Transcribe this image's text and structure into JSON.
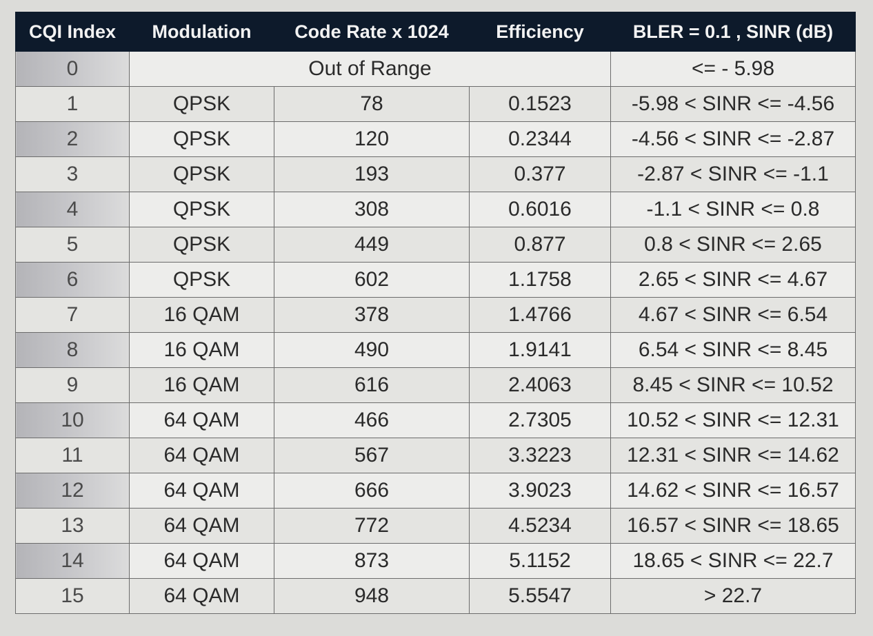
{
  "table": {
    "columns": [
      "CQI Index",
      "Modulation",
      "Code Rate x 1024",
      "Efficiency",
      "BLER = 0.1 , SINR (dB)"
    ],
    "out_of_range_row": {
      "cqi": "0",
      "label": "Out of Range",
      "sinr": "<= - 5.98"
    },
    "rows": [
      {
        "cqi": "1",
        "modulation": "QPSK",
        "code_rate": "78",
        "efficiency": "0.1523",
        "sinr": "-5.98 < SINR <= -4.56"
      },
      {
        "cqi": "2",
        "modulation": "QPSK",
        "code_rate": "120",
        "efficiency": "0.2344",
        "sinr": "-4.56 < SINR <= -2.87"
      },
      {
        "cqi": "3",
        "modulation": "QPSK",
        "code_rate": "193",
        "efficiency": "0.377",
        "sinr": "-2.87 < SINR <= -1.1"
      },
      {
        "cqi": "4",
        "modulation": "QPSK",
        "code_rate": "308",
        "efficiency": "0.6016",
        "sinr": "-1.1 < SINR <= 0.8"
      },
      {
        "cqi": "5",
        "modulation": "QPSK",
        "code_rate": "449",
        "efficiency": "0.877",
        "sinr": "0.8 < SINR <= 2.65"
      },
      {
        "cqi": "6",
        "modulation": "QPSK",
        "code_rate": "602",
        "efficiency": "1.1758",
        "sinr": "2.65 < SINR <= 4.67"
      },
      {
        "cqi": "7",
        "modulation": "16 QAM",
        "code_rate": "378",
        "efficiency": "1.4766",
        "sinr": "4.67 < SINR <= 6.54"
      },
      {
        "cqi": "8",
        "modulation": "16 QAM",
        "code_rate": "490",
        "efficiency": "1.9141",
        "sinr": "6.54 < SINR <= 8.45"
      },
      {
        "cqi": "9",
        "modulation": "16 QAM",
        "code_rate": "616",
        "efficiency": "2.4063",
        "sinr": "8.45 < SINR <= 10.52"
      },
      {
        "cqi": "10",
        "modulation": "64 QAM",
        "code_rate": "466",
        "efficiency": "2.7305",
        "sinr": "10.52 < SINR <= 12.31"
      },
      {
        "cqi": "11",
        "modulation": "64 QAM",
        "code_rate": "567",
        "efficiency": "3.3223",
        "sinr": "12.31 < SINR <= 14.62"
      },
      {
        "cqi": "12",
        "modulation": "64 QAM",
        "code_rate": "666",
        "efficiency": "3.9023",
        "sinr": "14.62 < SINR <= 16.57"
      },
      {
        "cqi": "13",
        "modulation": "64 QAM",
        "code_rate": "772",
        "efficiency": "4.5234",
        "sinr": "16.57 < SINR <= 18.65"
      },
      {
        "cqi": "14",
        "modulation": "64 QAM",
        "code_rate": "873",
        "efficiency": "5.1152",
        "sinr": "18.65 < SINR <= 22.7"
      },
      {
        "cqi": "15",
        "modulation": "64 QAM",
        "code_rate": "948",
        "efficiency": "5.5547",
        "sinr": "> 22.7"
      }
    ]
  },
  "chart_data": {
    "type": "table",
    "title": "",
    "columns": [
      "CQI Index",
      "Modulation",
      "Code Rate x 1024",
      "Efficiency",
      "BLER = 0.1 , SINR (dB)"
    ],
    "rows": [
      [
        "0",
        "Out of Range",
        "",
        "",
        "<= - 5.98"
      ],
      [
        "1",
        "QPSK",
        "78",
        "0.1523",
        "-5.98 < SINR <= -4.56"
      ],
      [
        "2",
        "QPSK",
        "120",
        "0.2344",
        "-4.56 < SINR <= -2.87"
      ],
      [
        "3",
        "QPSK",
        "193",
        "0.377",
        "-2.87 < SINR <= -1.1"
      ],
      [
        "4",
        "QPSK",
        "308",
        "0.6016",
        "-1.1 < SINR <= 0.8"
      ],
      [
        "5",
        "QPSK",
        "449",
        "0.877",
        "0.8 < SINR <= 2.65"
      ],
      [
        "6",
        "QPSK",
        "602",
        "1.1758",
        "2.65 < SINR <= 4.67"
      ],
      [
        "7",
        "16 QAM",
        "378",
        "1.4766",
        "4.67 < SINR <= 6.54"
      ],
      [
        "8",
        "16 QAM",
        "490",
        "1.9141",
        "6.54 < SINR <= 8.45"
      ],
      [
        "9",
        "16 QAM",
        "616",
        "2.4063",
        "8.45 < SINR <= 10.52"
      ],
      [
        "10",
        "64 QAM",
        "466",
        "2.7305",
        "10.52 < SINR <= 12.31"
      ],
      [
        "11",
        "64 QAM",
        "567",
        "3.3223",
        "12.31 < SINR <= 14.62"
      ],
      [
        "12",
        "64 QAM",
        "666",
        "3.9023",
        "14.62 < SINR <= 16.57"
      ],
      [
        "13",
        "64 QAM",
        "772",
        "4.5234",
        "16.57 < SINR <= 18.65"
      ],
      [
        "14",
        "64 QAM",
        "873",
        "5.1152",
        "18.65 < SINR <= 22.7"
      ],
      [
        "15",
        "64 QAM",
        "948",
        "5.5547",
        "> 22.7"
      ]
    ]
  },
  "colors": {
    "header_bg": "#0d1a2b",
    "header_text": "#f2f2f2",
    "cell_bg": "#ededeb",
    "grid_line": "#6b6b6b"
  }
}
